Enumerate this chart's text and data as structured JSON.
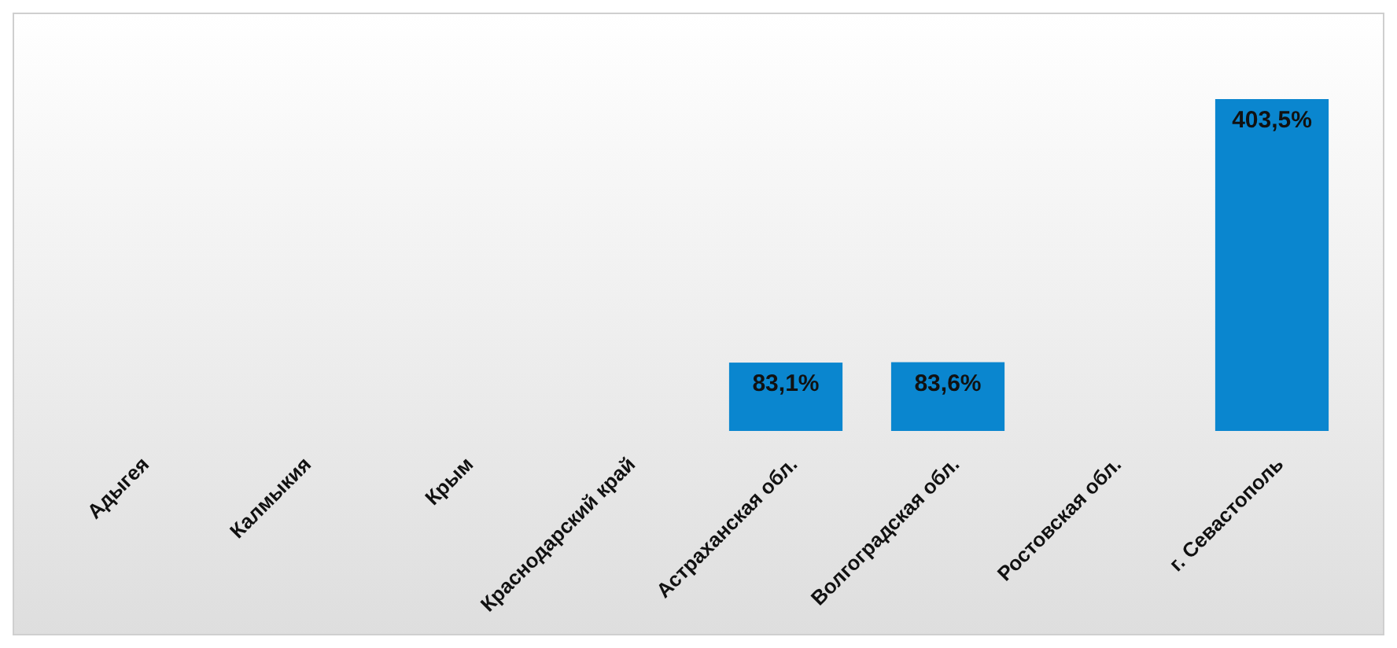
{
  "chart_data": {
    "type": "bar",
    "categories": [
      "Адыгея",
      "Калмыкия",
      "Крым",
      "Краснодарский край",
      "Астраханская обл.",
      "Волгоградская обл.",
      "Ростовская обл.",
      "г. Севастополь"
    ],
    "values": [
      null,
      null,
      null,
      null,
      83.1,
      83.6,
      null,
      403.5
    ],
    "value_labels": [
      null,
      null,
      null,
      null,
      "83,1%",
      "83,6%",
      null,
      "403,5%"
    ],
    "color": "#0a86cf"
  }
}
